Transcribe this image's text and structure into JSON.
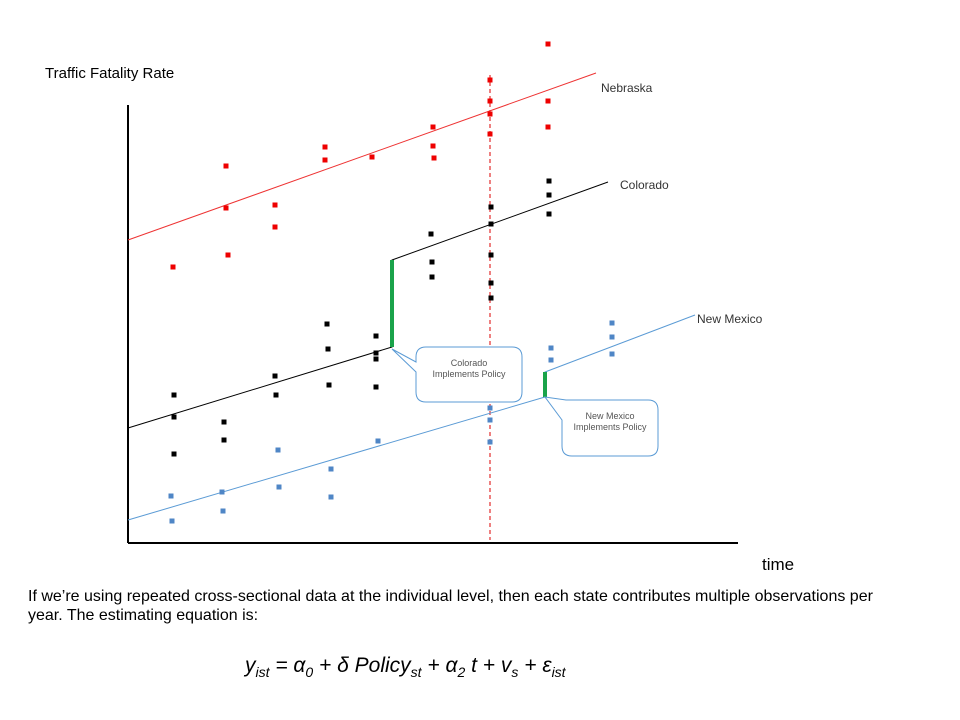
{
  "y_axis_label": "Traffic Fatality Rate",
  "x_axis_label": "time",
  "lines": [
    {
      "label": "Nebraska"
    },
    {
      "label": "Colorado"
    },
    {
      "label": "New Mexico"
    }
  ],
  "callouts": [
    {
      "text": "Colorado Implements Policy"
    },
    {
      "text": "New Mexico Implements Policy"
    }
  ],
  "paragraph": "If we’re using repeated cross-sectional data at the individual level, then each state contributes multiple observations per year. The estimating equation is:",
  "equation": [
    {
      "t": "y",
      "sub": "ist"
    },
    {
      "t": " = α",
      "sub": "0"
    },
    {
      "t": " + δ Policy",
      "sub": "st"
    },
    {
      "t": " + α",
      "sub": "2"
    },
    {
      "t": " t + v",
      "sub": "s"
    },
    {
      "t": " + ε",
      "sub": "ist"
    }
  ]
}
